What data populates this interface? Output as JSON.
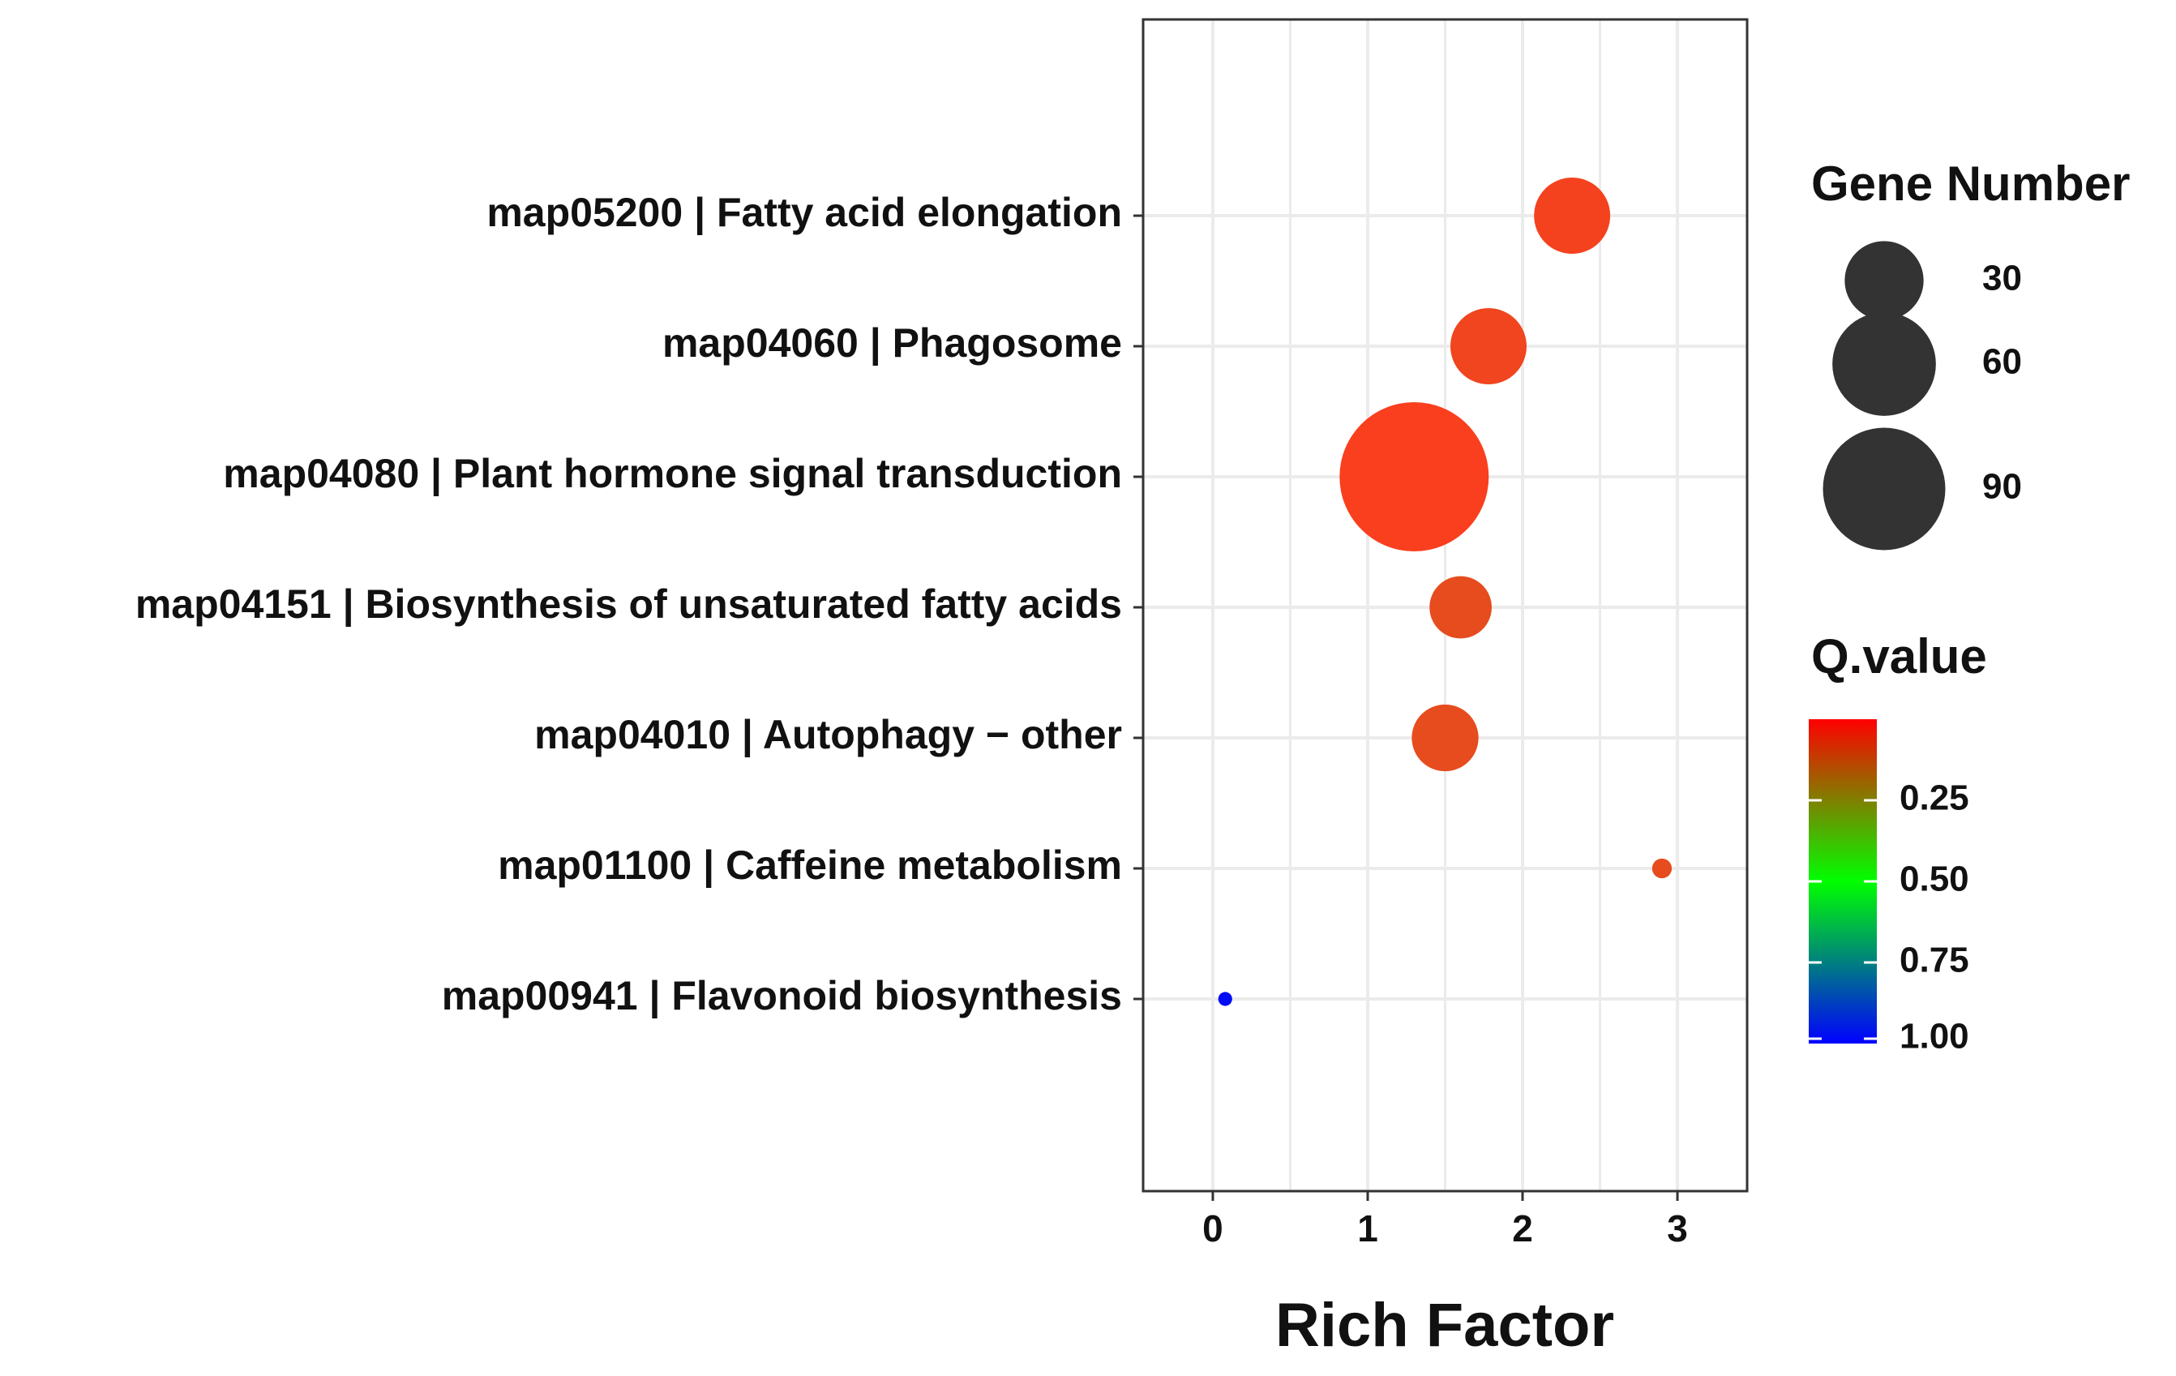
{
  "chart_data": {
    "type": "scatter",
    "title": "",
    "xlabel": "Rich Factor",
    "ylabel": "",
    "xlim": [
      -0.45,
      3.45
    ],
    "x_ticks": [
      0,
      1,
      2,
      3
    ],
    "x_tick_labels": [
      "0",
      "1",
      "2",
      "3"
    ],
    "grid": true,
    "legend_position": "right",
    "categories": [
      "map05200 | Fatty acid elongation",
      "map04060 | Phagosome",
      "map04080 | Plant hormone signal transduction",
      "map04151 | Biosynthesis of unsaturated fatty acids",
      "map04010 | Autophagy − other",
      "map01100 | Caffeine metabolism",
      "map00941 | Flavonoid biosynthesis"
    ],
    "points": [
      {
        "term": "map05200 | Fatty acid elongation",
        "rich_factor": 2.32,
        "gene_number": 30,
        "q_value": 0.02
      },
      {
        "term": "map04060 | Phagosome",
        "rich_factor": 1.78,
        "gene_number": 30,
        "q_value": 0.03
      },
      {
        "term": "map04080 | Plant hormone signal transduction",
        "rich_factor": 1.3,
        "gene_number": 115,
        "q_value": 0.01
      },
      {
        "term": "map04151 | Biosynthesis of unsaturated fatty acids",
        "rich_factor": 1.6,
        "gene_number": 20,
        "q_value": 0.05
      },
      {
        "term": "map04010 | Autophagy − other",
        "rich_factor": 1.5,
        "gene_number": 23,
        "q_value": 0.05
      },
      {
        "term": "map01100 | Caffeine metabolism",
        "rich_factor": 2.9,
        "gene_number": 2,
        "q_value": 0.05
      },
      {
        "term": "map00941 | Flavonoid biosynthesis",
        "rich_factor": 0.08,
        "gene_number": 1,
        "q_value": 0.98
      }
    ],
    "size_legend": {
      "title": "Gene Number",
      "values": [
        30,
        60,
        90
      ],
      "labels": [
        "30",
        "60",
        "90"
      ]
    },
    "color_legend": {
      "title": "Q.value",
      "range": [
        0.0,
        1.0
      ],
      "ticks": [
        0.25,
        0.5,
        0.75,
        1.0
      ],
      "tick_labels": [
        "0.25",
        "0.50",
        "0.75",
        "1.00"
      ],
      "low_color": "#ff0000",
      "mid_color": "#00ff00",
      "high_color": "#0000ff"
    }
  }
}
